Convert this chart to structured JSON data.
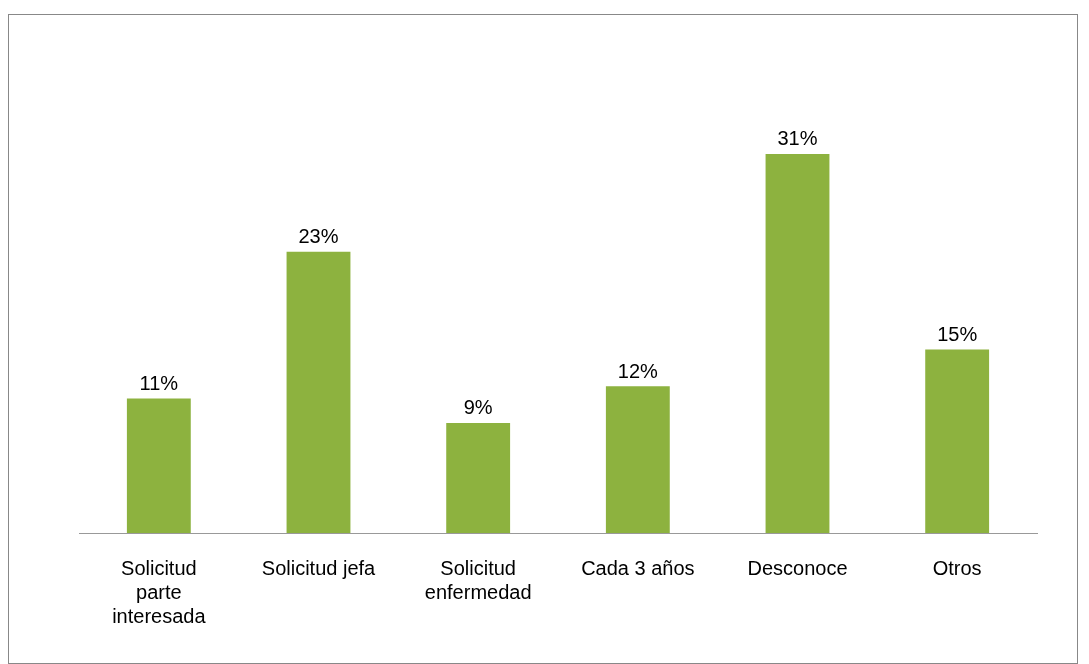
{
  "chart_data": {
    "type": "bar",
    "categories": [
      "Solicitud parte interesada",
      "Solicitud jefa",
      "Solicitud enfermedad",
      "Cada 3 años",
      "Desconoce",
      "Otros"
    ],
    "values": [
      11,
      23,
      9,
      12,
      31,
      15
    ],
    "value_labels": [
      "11%",
      "23%",
      "9%",
      "12%",
      "31%",
      "15%"
    ],
    "color": "#8db23f"
  }
}
